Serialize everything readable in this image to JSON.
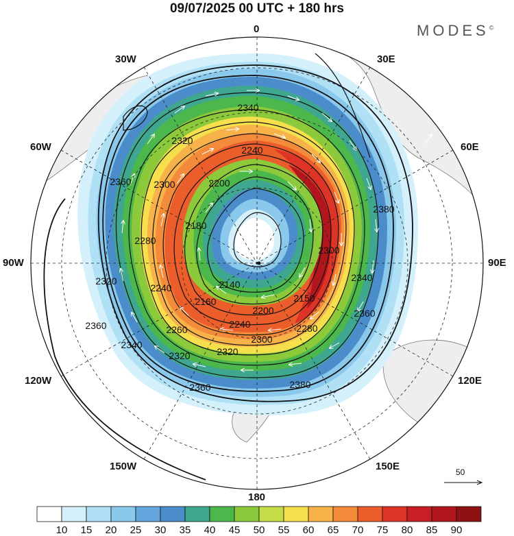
{
  "header": {
    "title": "09/07/2025  00 UTC  + 180 hrs",
    "brand": "MODES",
    "brand_mark": "©"
  },
  "longitude_labels": [
    {
      "id": "lon-0",
      "text": "0"
    },
    {
      "id": "lon-30e",
      "text": "30E"
    },
    {
      "id": "lon-60e",
      "text": "60E"
    },
    {
      "id": "lon-90e",
      "text": "90E"
    },
    {
      "id": "lon-120e",
      "text": "120E"
    },
    {
      "id": "lon-150e",
      "text": "150E"
    },
    {
      "id": "lon-180",
      "text": "180"
    },
    {
      "id": "lon-150w",
      "text": "150W"
    },
    {
      "id": "lon-120w",
      "text": "120W"
    },
    {
      "id": "lon-90w",
      "text": "90W"
    },
    {
      "id": "lon-60w",
      "text": "60W"
    },
    {
      "id": "lon-30w",
      "text": "30W"
    }
  ],
  "contours": {
    "labels": [
      "2140",
      "2150",
      "2160",
      "2180",
      "2200",
      "2240",
      "2260",
      "2280",
      "2300",
      "2320",
      "2340",
      "2360",
      "2380"
    ]
  },
  "wind_vectors": {
    "reference_value": "50"
  },
  "colorbar": {
    "levels": [
      "10",
      "15",
      "20",
      "25",
      "30",
      "35",
      "40",
      "45",
      "50",
      "55",
      "60",
      "65",
      "70",
      "75",
      "80",
      "85",
      "90"
    ],
    "colors": [
      "#ffffff",
      "#d4f0fb",
      "#b0e0f5",
      "#8ac8ec",
      "#63a6dd",
      "#4a8dca",
      "#3fa690",
      "#4cb84c",
      "#8cca3c",
      "#c6dd4a",
      "#f6df4c",
      "#f7b24a",
      "#f48b3a",
      "#ec5d2c",
      "#de3428",
      "#c81e24",
      "#b0161c",
      "#8e1214"
    ]
  }
}
